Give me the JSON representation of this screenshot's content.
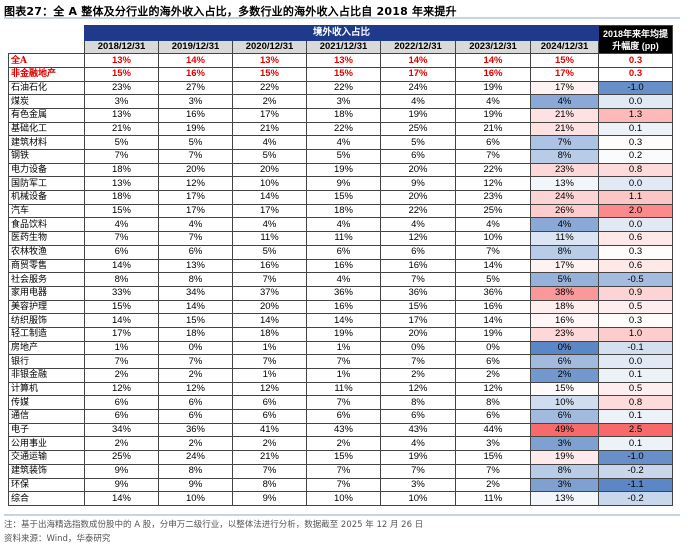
{
  "title": "图表27：全 A 整体及分行业的海外收入占比，多数行业的海外收入占比自 2018 年来提升",
  "table": {
    "group_header": "境外收入占比",
    "last_header": "2018年来年均提升幅度 (pp)",
    "dates": [
      "2018/12/31",
      "2019/12/31",
      "2020/12/31",
      "2021/12/31",
      "2022/12/31",
      "2023/12/31",
      "2024/12/31"
    ],
    "rows": [
      {
        "name": "全A",
        "values": [
          "13%",
          "14%",
          "13%",
          "13%",
          "14%",
          "14%",
          "15%"
        ],
        "change": "0.3",
        "highlight": true
      },
      {
        "name": "非金融地产",
        "values": [
          "15%",
          "16%",
          "15%",
          "15%",
          "17%",
          "16%",
          "17%"
        ],
        "change": "0.3",
        "highlight": true
      },
      {
        "name": "石油石化",
        "values": [
          "23%",
          "27%",
          "22%",
          "22%",
          "24%",
          "19%",
          "17%"
        ],
        "change": "-1.0"
      },
      {
        "name": "煤炭",
        "values": [
          "3%",
          "3%",
          "2%",
          "3%",
          "4%",
          "4%",
          "4%"
        ],
        "change": "0.0"
      },
      {
        "name": "有色金属",
        "values": [
          "13%",
          "16%",
          "17%",
          "18%",
          "19%",
          "19%",
          "21%"
        ],
        "change": "1.3"
      },
      {
        "name": "基础化工",
        "values": [
          "21%",
          "19%",
          "21%",
          "22%",
          "25%",
          "21%",
          "21%"
        ],
        "change": "0.1"
      },
      {
        "name": "建筑材料",
        "values": [
          "5%",
          "5%",
          "4%",
          "4%",
          "5%",
          "6%",
          "7%"
        ],
        "change": "0.3"
      },
      {
        "name": "钢铁",
        "values": [
          "7%",
          "7%",
          "5%",
          "5%",
          "6%",
          "7%",
          "8%"
        ],
        "change": "0.2"
      },
      {
        "name": "电力设备",
        "values": [
          "18%",
          "20%",
          "20%",
          "19%",
          "20%",
          "22%",
          "23%"
        ],
        "change": "0.8"
      },
      {
        "name": "国防军工",
        "values": [
          "13%",
          "12%",
          "10%",
          "9%",
          "9%",
          "12%",
          "13%"
        ],
        "change": "0.0"
      },
      {
        "name": "机械设备",
        "values": [
          "18%",
          "17%",
          "14%",
          "15%",
          "20%",
          "23%",
          "24%"
        ],
        "change": "1.1"
      },
      {
        "name": "汽车",
        "values": [
          "15%",
          "17%",
          "17%",
          "18%",
          "22%",
          "25%",
          "26%"
        ],
        "change": "2.0"
      },
      {
        "name": "食品饮料",
        "values": [
          "4%",
          "4%",
          "4%",
          "4%",
          "4%",
          "4%",
          "4%"
        ],
        "change": "0.0"
      },
      {
        "name": "医药生物",
        "values": [
          "7%",
          "7%",
          "11%",
          "11%",
          "12%",
          "10%",
          "11%"
        ],
        "change": "0.6"
      },
      {
        "name": "农林牧渔",
        "values": [
          "6%",
          "6%",
          "5%",
          "6%",
          "6%",
          "7%",
          "8%"
        ],
        "change": "0.3"
      },
      {
        "name": "商贸零售",
        "values": [
          "14%",
          "13%",
          "16%",
          "16%",
          "16%",
          "14%",
          "17%"
        ],
        "change": "0.6"
      },
      {
        "name": "社会服务",
        "values": [
          "8%",
          "8%",
          "7%",
          "4%",
          "7%",
          "5%",
          "5%"
        ],
        "change": "-0.5"
      },
      {
        "name": "家用电器",
        "values": [
          "33%",
          "34%",
          "37%",
          "36%",
          "36%",
          "36%",
          "38%"
        ],
        "change": "0.9"
      },
      {
        "name": "美容护理",
        "values": [
          "15%",
          "14%",
          "20%",
          "16%",
          "15%",
          "16%",
          "18%"
        ],
        "change": "0.5"
      },
      {
        "name": "纺织服饰",
        "values": [
          "14%",
          "15%",
          "14%",
          "14%",
          "17%",
          "14%",
          "16%"
        ],
        "change": "0.3"
      },
      {
        "name": "轻工制造",
        "values": [
          "17%",
          "18%",
          "18%",
          "19%",
          "20%",
          "19%",
          "23%"
        ],
        "change": "1.0"
      },
      {
        "name": "房地产",
        "values": [
          "1%",
          "0%",
          "1%",
          "1%",
          "0%",
          "0%",
          "0%"
        ],
        "change": "-0.1"
      },
      {
        "name": "银行",
        "values": [
          "7%",
          "7%",
          "7%",
          "7%",
          "7%",
          "6%",
          "6%"
        ],
        "change": "0.0"
      },
      {
        "name": "非银金融",
        "values": [
          "2%",
          "2%",
          "1%",
          "1%",
          "2%",
          "2%",
          "2%"
        ],
        "change": "0.1"
      },
      {
        "name": "计算机",
        "values": [
          "12%",
          "12%",
          "12%",
          "11%",
          "12%",
          "12%",
          "15%"
        ],
        "change": "0.5"
      },
      {
        "name": "传媒",
        "values": [
          "6%",
          "6%",
          "6%",
          "7%",
          "8%",
          "8%",
          "10%"
        ],
        "change": "0.8"
      },
      {
        "name": "通信",
        "values": [
          "6%",
          "6%",
          "6%",
          "6%",
          "6%",
          "6%",
          "6%"
        ],
        "change": "0.1"
      },
      {
        "name": "电子",
        "values": [
          "34%",
          "36%",
          "41%",
          "43%",
          "43%",
          "44%",
          "49%"
        ],
        "change": "2.5"
      },
      {
        "name": "公用事业",
        "values": [
          "2%",
          "2%",
          "2%",
          "2%",
          "4%",
          "3%",
          "3%"
        ],
        "change": "0.1"
      },
      {
        "name": "交通运输",
        "values": [
          "25%",
          "24%",
          "21%",
          "15%",
          "19%",
          "15%",
          "19%"
        ],
        "change": "-1.0"
      },
      {
        "name": "建筑装饰",
        "values": [
          "9%",
          "8%",
          "7%",
          "7%",
          "7%",
          "7%",
          "8%"
        ],
        "change": "-0.2"
      },
      {
        "name": "环保",
        "values": [
          "9%",
          "9%",
          "8%",
          "7%",
          "3%",
          "2%",
          "3%"
        ],
        "change": "-1.1"
      },
      {
        "name": "综合",
        "values": [
          "14%",
          "10%",
          "9%",
          "10%",
          "10%",
          "11%",
          "13%"
        ],
        "change": "-0.2"
      }
    ]
  },
  "colors": {
    "header_blue": "#1f3a8a",
    "heat_low": "#5b87c6",
    "heat_mid": "#ffffff",
    "heat_high": "#f8696b",
    "highlight_red": "#e00000"
  },
  "note": "注：基于出海精选指数成份股中的 A 股，分申万二级行业，以整体法进行分析，数据截至 2025 年 12 月 26 日",
  "source": "资料来源：Wind，华泰研究"
}
